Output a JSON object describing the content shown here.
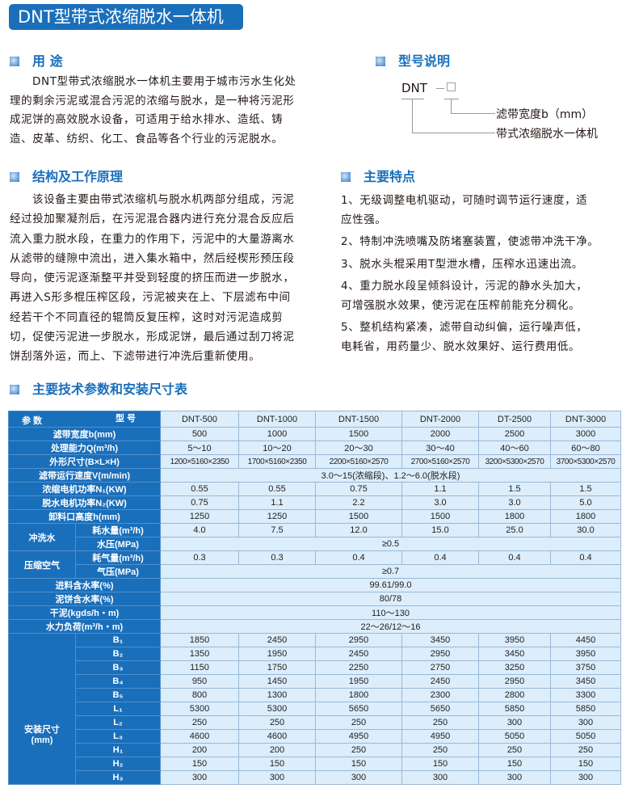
{
  "title": "DNT型带式浓缩脱水一体机",
  "usage": {
    "heading": "用 途",
    "lines": [
      "DNT型带式浓缩脱水一体机主要用于城市污水生化处",
      "理的剩余污泥或混合污泥的浓缩与脱水，是一种将污泥形",
      "成泥饼的高效脱水设备，可适用于给水排水、造纸、铸",
      "造、皮革、纺织、化工、食品等各个行业的污泥脱水。"
    ]
  },
  "model": {
    "heading": "型号说明",
    "code": "DNT",
    "dash": "－",
    "box": "□",
    "label_width": "滤带宽度b（mm）",
    "label_type": "带式浓缩脱水一体机"
  },
  "principle": {
    "heading": "结构及工作原理",
    "lines": [
      "该设备主要由带式浓缩机与脱水机两部分组成，污泥",
      "经过投加聚凝剂后，在污泥混合器内进行充分混合反应后",
      "流入重力脱水段，在重力的作用下，污泥中的大量游离水",
      "从滤带的缝隙中流出，进入集水箱中，然后经楔形预压段",
      "导向，使污泥逐渐整平并受到轻度的挤压而进一步脱水，",
      "再进入S形多棍压榨区段，污泥被夹在上、下层滤布中间",
      "经若干个不同直径的辊筒反复压榨，这时对污泥造成剪",
      "切，促使污泥进一步脱水，形成泥饼，最后通过刮刀将泥",
      "饼刮落外运，而上、下滤带进行冲洗后重新使用。"
    ]
  },
  "features": {
    "heading": "主要特点",
    "lines": [
      "1、无级调整电机驱动，可随时调节运行速度，适",
      "应性强。",
      "2、特制冲洗喷嘴及防堵塞装置，使滤带冲洗干净。",
      "3、脱水头棍采用T型泄水槽，压榨水迅速出流。",
      "4、重力脱水段呈倾斜设计，污泥的静水头加大，",
      "可增强脱水效果，使污泥在压榨前能充分稠化。",
      "5、整机结构紧凑，滤带自动纠偏，运行噪声低，",
      "电耗省，用药量少、脱水效果好、运行费用低。"
    ]
  },
  "table": {
    "heading": "主要技术参数和安装尺寸表",
    "corner_param": "参 数",
    "corner_model": "型 号",
    "models": [
      "DNT-500",
      "DNT-1000",
      "DNT-1500",
      "DNT-2000",
      "DT-2500",
      "DNT-3000"
    ],
    "rows": [
      {
        "label": "滤带宽度b(mm)",
        "values": [
          "500",
          "1000",
          "1500",
          "2000",
          "2500",
          "3000"
        ]
      },
      {
        "label": "处理能力Q(m³/h)",
        "values": [
          "5～10",
          "10～20",
          "20～30",
          "30～40",
          "40～60",
          "60～80"
        ]
      },
      {
        "label": "外形尺寸(B×L×H)",
        "values": [
          "1200×5160×2350",
          "1700×5160×2350",
          "2200×5160×2570",
          "2700×5160×2570",
          "3200×5300×2570",
          "3700×5300×2570"
        ]
      },
      {
        "label": "滤带运行速度V(m/min)",
        "span": "3.0～15(浓缩段)、1.2～6.0(脱水段)"
      },
      {
        "label": "浓缩电机功率N₁(KW)",
        "values": [
          "0.55",
          "0.55",
          "0.75",
          "1.1",
          "1.5",
          "1.5"
        ]
      },
      {
        "label": "脱水电机功率N₂(KW)",
        "values": [
          "0.75",
          "1.1",
          "2.2",
          "3.0",
          "3.0",
          "5.0"
        ]
      },
      {
        "label": "卸料口高度h(mm)",
        "values": [
          "1250",
          "1250",
          "1500",
          "1500",
          "1800",
          "1800"
        ]
      }
    ],
    "wash": {
      "group": "冲洗水",
      "sub1": "耗水量(m³/h)",
      "values": [
        "4.0",
        "7.5",
        "12.0",
        "15.0",
        "25.0",
        "30.0"
      ],
      "sub2": "水压(MPa)",
      "span": "≥0.5"
    },
    "air": {
      "group": "压缩空气",
      "sub1": "耗气量(m³/h)",
      "values": [
        "0.3",
        "0.3",
        "0.4",
        "0.4",
        "0.4",
        "0.4"
      ],
      "sub2": "气压(MPa)",
      "span": "≥0.7"
    },
    "rows2": [
      {
        "label": "进料含水率(%)",
        "span": "99.61/99.0"
      },
      {
        "label": "泥饼含水率(%)",
        "span": "80/78"
      },
      {
        "label": "干泥(kgds/h・m)",
        "span": "110～130"
      },
      {
        "label": "水力负荷(m³/h・m)",
        "span": "22～26/12～16"
      }
    ],
    "install": {
      "group": "安装尺寸\n(mm)",
      "rows": [
        {
          "label": "B₁",
          "values": [
            "1850",
            "2450",
            "2950",
            "3450",
            "3950",
            "4450"
          ]
        },
        {
          "label": "B₂",
          "values": [
            "1350",
            "1950",
            "2450",
            "2950",
            "3450",
            "3950"
          ]
        },
        {
          "label": "B₃",
          "values": [
            "1150",
            "1750",
            "2250",
            "2750",
            "3250",
            "3750"
          ]
        },
        {
          "label": "B₄",
          "values": [
            "950",
            "1450",
            "1950",
            "2450",
            "2950",
            "3450"
          ]
        },
        {
          "label": "B₅",
          "values": [
            "800",
            "1300",
            "1800",
            "2300",
            "2800",
            "3300"
          ]
        },
        {
          "label": "L₁",
          "values": [
            "5300",
            "5300",
            "5650",
            "5650",
            "5850",
            "5850"
          ]
        },
        {
          "label": "L₂",
          "values": [
            "250",
            "250",
            "250",
            "250",
            "300",
            "300"
          ]
        },
        {
          "label": "L₃",
          "values": [
            "4600",
            "4600",
            "4950",
            "4950",
            "5050",
            "5050"
          ]
        },
        {
          "label": "H₁",
          "values": [
            "200",
            "200",
            "250",
            "250",
            "250",
            "250"
          ]
        },
        {
          "label": "H₂",
          "values": [
            "150",
            "150",
            "150",
            "150",
            "150",
            "150"
          ]
        },
        {
          "label": "H₃",
          "values": [
            "300",
            "300",
            "300",
            "300",
            "300",
            "300"
          ]
        }
      ]
    }
  },
  "colors": {
    "brand": "#1a6fbb",
    "cell": "#dcedfb"
  }
}
